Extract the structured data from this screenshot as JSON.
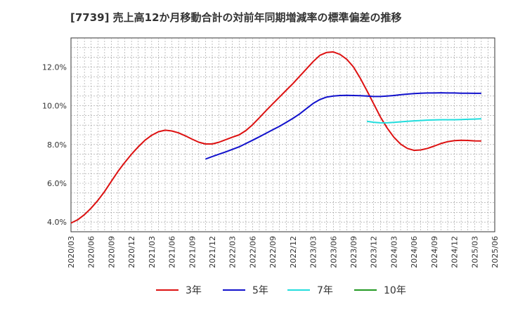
{
  "chart_data": {
    "type": "line",
    "title": "[7739]  売上高12か月移動合計の対前年同期増減率の標準偏差の推移",
    "xlabel": "",
    "ylabel": "",
    "x_ticks": [
      "2020/03",
      "2020/06",
      "2020/09",
      "2020/12",
      "2021/03",
      "2021/06",
      "2021/09",
      "2021/12",
      "2022/03",
      "2022/06",
      "2022/09",
      "2022/12",
      "2023/03",
      "2023/06",
      "2023/09",
      "2023/12",
      "2024/03",
      "2024/06",
      "2024/09",
      "2024/12",
      "2025/03",
      "2025/06"
    ],
    "y_ticks": [
      "4.0%",
      "6.0%",
      "8.0%",
      "10.0%",
      "12.0%"
    ],
    "y_tick_values": [
      4.0,
      6.0,
      8.0,
      10.0,
      12.0
    ],
    "ylim": [
      3.5,
      13.5
    ],
    "grid": true,
    "legend_position": "bottom",
    "series": [
      {
        "name": "3年",
        "color": "#dd1111",
        "points": [
          [
            "2020/03",
            3.95
          ],
          [
            "2020/04",
            4.12
          ],
          [
            "2020/05",
            4.38
          ],
          [
            "2020/06",
            4.72
          ],
          [
            "2020/07",
            5.12
          ],
          [
            "2020/08",
            5.58
          ],
          [
            "2020/09",
            6.1
          ],
          [
            "2020/10",
            6.62
          ],
          [
            "2020/11",
            7.08
          ],
          [
            "2020/12",
            7.5
          ],
          [
            "2021/01",
            7.88
          ],
          [
            "2021/02",
            8.22
          ],
          [
            "2021/03",
            8.48
          ],
          [
            "2021/04",
            8.66
          ],
          [
            "2021/05",
            8.74
          ],
          [
            "2021/06",
            8.7
          ],
          [
            "2021/07",
            8.6
          ],
          [
            "2021/08",
            8.45
          ],
          [
            "2021/09",
            8.28
          ],
          [
            "2021/10",
            8.12
          ],
          [
            "2021/11",
            8.03
          ],
          [
            "2021/12",
            8.03
          ],
          [
            "2022/01",
            8.12
          ],
          [
            "2022/02",
            8.25
          ],
          [
            "2022/03",
            8.38
          ],
          [
            "2022/04",
            8.5
          ],
          [
            "2022/05",
            8.72
          ],
          [
            "2022/06",
            9.02
          ],
          [
            "2022/07",
            9.38
          ],
          [
            "2022/08",
            9.75
          ],
          [
            "2022/09",
            10.1
          ],
          [
            "2022/10",
            10.45
          ],
          [
            "2022/11",
            10.8
          ],
          [
            "2022/12",
            11.15
          ],
          [
            "2023/01",
            11.52
          ],
          [
            "2023/02",
            11.9
          ],
          [
            "2023/03",
            12.28
          ],
          [
            "2023/04",
            12.6
          ],
          [
            "2023/05",
            12.75
          ],
          [
            "2023/06",
            12.78
          ],
          [
            "2023/07",
            12.65
          ],
          [
            "2023/08",
            12.4
          ],
          [
            "2023/09",
            12.0
          ],
          [
            "2023/10",
            11.42
          ],
          [
            "2023/11",
            10.78
          ],
          [
            "2023/12",
            10.1
          ],
          [
            "2024/01",
            9.42
          ],
          [
            "2024/02",
            8.85
          ],
          [
            "2024/03",
            8.38
          ],
          [
            "2024/04",
            8.02
          ],
          [
            "2024/05",
            7.8
          ],
          [
            "2024/06",
            7.7
          ],
          [
            "2024/07",
            7.72
          ],
          [
            "2024/08",
            7.8
          ],
          [
            "2024/09",
            7.92
          ],
          [
            "2024/10",
            8.05
          ],
          [
            "2024/11",
            8.15
          ],
          [
            "2024/12",
            8.2
          ],
          [
            "2025/01",
            8.22
          ],
          [
            "2025/02",
            8.21
          ],
          [
            "2025/03",
            8.19
          ],
          [
            "2025/04",
            8.18
          ]
        ]
      },
      {
        "name": "5年",
        "color": "#1111cc",
        "points": [
          [
            "2021/11",
            7.25
          ],
          [
            "2021/12",
            7.38
          ],
          [
            "2022/01",
            7.5
          ],
          [
            "2022/02",
            7.62
          ],
          [
            "2022/03",
            7.75
          ],
          [
            "2022/04",
            7.88
          ],
          [
            "2022/05",
            8.05
          ],
          [
            "2022/06",
            8.22
          ],
          [
            "2022/07",
            8.4
          ],
          [
            "2022/08",
            8.58
          ],
          [
            "2022/09",
            8.76
          ],
          [
            "2022/10",
            8.94
          ],
          [
            "2022/11",
            9.14
          ],
          [
            "2022/12",
            9.35
          ],
          [
            "2023/01",
            9.58
          ],
          [
            "2023/02",
            9.85
          ],
          [
            "2023/03",
            10.12
          ],
          [
            "2023/04",
            10.32
          ],
          [
            "2023/05",
            10.45
          ],
          [
            "2023/06",
            10.5
          ],
          [
            "2023/07",
            10.53
          ],
          [
            "2023/08",
            10.54
          ],
          [
            "2023/09",
            10.53
          ],
          [
            "2023/10",
            10.52
          ],
          [
            "2023/11",
            10.5
          ],
          [
            "2023/12",
            10.48
          ],
          [
            "2024/01",
            10.48
          ],
          [
            "2024/02",
            10.5
          ],
          [
            "2024/03",
            10.53
          ],
          [
            "2024/04",
            10.57
          ],
          [
            "2024/05",
            10.6
          ],
          [
            "2024/06",
            10.63
          ],
          [
            "2024/07",
            10.65
          ],
          [
            "2024/08",
            10.66
          ],
          [
            "2024/09",
            10.66
          ],
          [
            "2024/10",
            10.67
          ],
          [
            "2024/11",
            10.66
          ],
          [
            "2024/12",
            10.66
          ],
          [
            "2025/01",
            10.65
          ],
          [
            "2025/02",
            10.65
          ],
          [
            "2025/03",
            10.64
          ],
          [
            "2025/04",
            10.64
          ]
        ]
      },
      {
        "name": "7年",
        "color": "#22dddd",
        "points": [
          [
            "2023/11",
            9.2
          ],
          [
            "2023/12",
            9.15
          ],
          [
            "2024/01",
            9.12
          ],
          [
            "2024/02",
            9.12
          ],
          [
            "2024/03",
            9.14
          ],
          [
            "2024/04",
            9.17
          ],
          [
            "2024/05",
            9.2
          ],
          [
            "2024/06",
            9.22
          ],
          [
            "2024/07",
            9.24
          ],
          [
            "2024/08",
            9.26
          ],
          [
            "2024/09",
            9.27
          ],
          [
            "2024/10",
            9.28
          ],
          [
            "2024/11",
            9.28
          ],
          [
            "2024/12",
            9.28
          ],
          [
            "2025/01",
            9.29
          ],
          [
            "2025/02",
            9.3
          ],
          [
            "2025/03",
            9.31
          ],
          [
            "2025/04",
            9.33
          ]
        ]
      },
      {
        "name": "10年",
        "color": "#229922",
        "points": []
      }
    ]
  }
}
